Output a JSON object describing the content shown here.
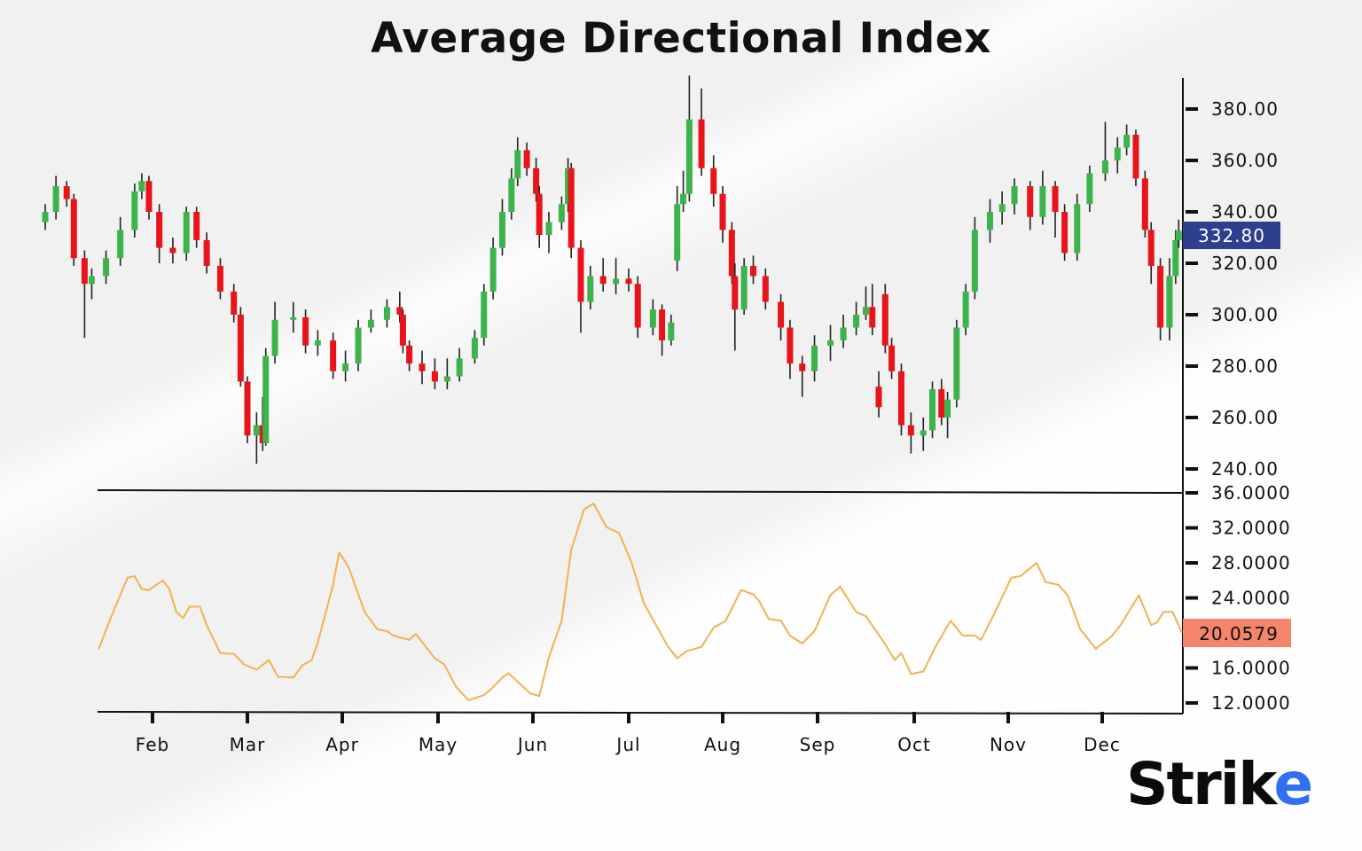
{
  "chart_data": [
    {
      "type": "candlestick",
      "title": "Average Directional Index",
      "price_axis": {
        "ticks": [
          "380.00",
          "360.00",
          "340.00",
          "320.00",
          "300.00",
          "280.00",
          "260.00",
          "240.00"
        ],
        "range": [
          240,
          380
        ],
        "position": "right"
      },
      "last_price_label": "332.80",
      "x_axis": {
        "tick_labels": [
          "Feb",
          "Mar",
          "Apr",
          "May",
          "Jun",
          "Jul",
          "Aug",
          "Sep",
          "Oct",
          "Nov",
          "Dec"
        ]
      },
      "colors": {
        "up": "#3cb44b",
        "down": "#e8141b",
        "wick": "#222222",
        "last_price_badge": "#2e3f8f"
      },
      "candles_columns": [
        "date",
        "open",
        "high",
        "low",
        "close"
      ],
      "candles": [
        [
          "01-02",
          336,
          343,
          333,
          340
        ],
        [
          "01-05",
          340,
          354,
          337,
          350
        ],
        [
          "01-08",
          350,
          352,
          342,
          345
        ],
        [
          "01-10",
          345,
          347,
          319,
          322
        ],
        [
          "01-13",
          322,
          325,
          291,
          312
        ],
        [
          "01-15",
          312,
          318,
          306,
          315
        ],
        [
          "01-19",
          315,
          325,
          312,
          322
        ],
        [
          "01-23",
          322,
          338,
          319,
          333
        ],
        [
          "01-27",
          333,
          351,
          330,
          348
        ],
        [
          "01-29",
          348,
          355,
          345,
          352
        ],
        [
          "01-31",
          352,
          354,
          337,
          340
        ],
        [
          "02-03",
          340,
          343,
          320,
          326
        ],
        [
          "02-07",
          326,
          330,
          320,
          324
        ],
        [
          "02-11",
          324,
          342,
          321,
          340
        ],
        [
          "02-14",
          340,
          342,
          326,
          329
        ],
        [
          "02-17",
          329,
          332,
          316,
          319
        ],
        [
          "02-21",
          319,
          322,
          306,
          309
        ],
        [
          "02-25",
          309,
          312,
          297,
          300
        ],
        [
          "02-27",
          300,
          303,
          272,
          274
        ],
        [
          "03-01",
          274,
          276,
          250,
          253
        ],
        [
          "03-04",
          253,
          262,
          242,
          257
        ],
        [
          "03-06",
          257,
          268,
          247,
          250
        ],
        [
          "03-07",
          250,
          287,
          249,
          284
        ],
        [
          "03-10",
          284,
          305,
          281,
          298
        ],
        [
          "03-16",
          298,
          305,
          293,
          299
        ],
        [
          "03-20",
          299,
          302,
          285,
          288
        ],
        [
          "03-24",
          288,
          294,
          284,
          290
        ],
        [
          "03-29",
          290,
          293,
          275,
          278
        ],
        [
          "04-02",
          278,
          286,
          274,
          281
        ],
        [
          "04-06",
          281,
          298,
          278,
          295
        ],
        [
          "04-10",
          295,
          302,
          293,
          298
        ],
        [
          "04-15",
          298,
          306,
          295,
          303
        ],
        [
          "04-19",
          303,
          309,
          297,
          300
        ],
        [
          "04-20",
          300,
          302,
          285,
          288
        ],
        [
          "04-22",
          288,
          290,
          278,
          281
        ],
        [
          "04-26",
          281,
          286,
          273,
          278
        ],
        [
          "04-30",
          278,
          283,
          271,
          274
        ],
        [
          "05-04",
          274,
          283,
          271,
          276
        ],
        [
          "05-08",
          276,
          287,
          274,
          283
        ],
        [
          "05-13",
          283,
          294,
          281,
          291
        ],
        [
          "05-16",
          291,
          312,
          288,
          309
        ],
        [
          "05-19",
          309,
          330,
          306,
          326
        ],
        [
          "05-22",
          326,
          345,
          323,
          340
        ],
        [
          "05-25",
          340,
          357,
          337,
          353
        ],
        [
          "05-27",
          353,
          369,
          350,
          364
        ],
        [
          "05-30",
          364,
          367,
          354,
          357
        ],
        [
          "06-02",
          357,
          361,
          344,
          347
        ],
        [
          "06-03",
          347,
          350,
          326,
          331
        ],
        [
          "06-06",
          331,
          340,
          324,
          336
        ],
        [
          "06-10",
          336,
          346,
          333,
          343
        ],
        [
          "06-12",
          343,
          361,
          340,
          357
        ],
        [
          "06-13",
          357,
          359,
          322,
          326
        ],
        [
          "06-16",
          326,
          329,
          293,
          305
        ],
        [
          "06-19",
          305,
          319,
          302,
          315
        ],
        [
          "06-23",
          315,
          322,
          309,
          312
        ],
        [
          "06-27",
          312,
          322,
          308,
          314
        ],
        [
          "07-01",
          314,
          318,
          309,
          312
        ],
        [
          "07-04",
          312,
          315,
          291,
          295
        ],
        [
          "07-09",
          295,
          306,
          292,
          302
        ],
        [
          "07-12",
          302,
          304,
          284,
          290
        ],
        [
          "07-15",
          290,
          300,
          288,
          297
        ],
        [
          "07-17",
          321,
          350,
          317,
          343
        ],
        [
          "07-19",
          343,
          356,
          340,
          347
        ],
        [
          "07-21",
          347,
          393,
          344,
          376
        ],
        [
          "07-25",
          376,
          388,
          354,
          357
        ],
        [
          "07-29",
          357,
          362,
          342,
          347
        ],
        [
          "08-01",
          347,
          350,
          328,
          333
        ],
        [
          "08-04",
          333,
          336,
          312,
          315
        ],
        [
          "08-05",
          315,
          320,
          286,
          302
        ],
        [
          "08-08",
          302,
          322,
          300,
          319
        ],
        [
          "08-11",
          319,
          323,
          312,
          315
        ],
        [
          "08-15",
          315,
          318,
          302,
          305
        ],
        [
          "08-20",
          305,
          308,
          290,
          295
        ],
        [
          "08-23",
          295,
          298,
          275,
          281
        ],
        [
          "08-27",
          281,
          284,
          268,
          278
        ],
        [
          "08-31",
          278,
          292,
          274,
          288
        ],
        [
          "09-05",
          288,
          296,
          282,
          290
        ],
        [
          "09-09",
          290,
          300,
          287,
          295
        ],
        [
          "09-13",
          295,
          305,
          292,
          300
        ],
        [
          "09-16",
          300,
          311,
          298,
          303
        ],
        [
          "09-18",
          303,
          312,
          292,
          295
        ],
        [
          "09-20",
          272,
          278,
          260,
          264
        ],
        [
          "09-22",
          308,
          312,
          285,
          288
        ],
        [
          "09-24",
          288,
          291,
          275,
          278
        ],
        [
          "09-27",
          278,
          281,
          253,
          257
        ],
        [
          "09-30",
          257,
          262,
          246,
          253
        ],
        [
          "10-04",
          253,
          260,
          247,
          255
        ],
        [
          "10-07",
          255,
          274,
          252,
          271
        ],
        [
          "10-10",
          271,
          275,
          257,
          260
        ],
        [
          "10-12",
          260,
          270,
          252,
          267
        ],
        [
          "10-15",
          267,
          298,
          264,
          295
        ],
        [
          "10-18",
          295,
          312,
          292,
          309
        ],
        [
          "10-21",
          309,
          338,
          306,
          333
        ],
        [
          "10-26",
          333,
          345,
          328,
          340
        ],
        [
          "10-30",
          340,
          348,
          335,
          343
        ],
        [
          "11-03",
          343,
          353,
          339,
          350
        ],
        [
          "11-08",
          350,
          352,
          333,
          338
        ],
        [
          "11-12",
          338,
          356,
          335,
          350
        ],
        [
          "11-16",
          350,
          352,
          330,
          340
        ],
        [
          "11-19",
          340,
          343,
          321,
          324
        ],
        [
          "11-23",
          324,
          347,
          321,
          343
        ],
        [
          "11-27",
          343,
          358,
          340,
          355
        ],
        [
          "12-02",
          355,
          375,
          352,
          360
        ],
        [
          "12-06",
          360,
          369,
          355,
          365
        ],
        [
          "12-09",
          365,
          374,
          362,
          370
        ],
        [
          "12-12",
          370,
          372,
          350,
          353
        ],
        [
          "12-15",
          353,
          356,
          330,
          333
        ],
        [
          "12-17",
          333,
          336,
          312,
          319
        ],
        [
          "12-20",
          319,
          322,
          290,
          295
        ],
        [
          "12-23",
          295,
          322,
          290,
          315
        ],
        [
          "12-25",
          315,
          333,
          312,
          329
        ],
        [
          "12-26",
          329,
          337,
          326,
          332.8
        ]
      ]
    },
    {
      "type": "line",
      "adx_axis": {
        "ticks": [
          "36.0000",
          "32.0000",
          "28.0000",
          "24.0000",
          "16.0000",
          "12.0000"
        ],
        "range": [
          12,
          36
        ],
        "position": "right"
      },
      "last_value_label": "20.0579",
      "colors": {
        "line": "#f2b24f",
        "last_value_badge": "#f4846a"
      },
      "points_columns": [
        "date",
        "value"
      ],
      "points": [
        [
          "01-17",
          18.2
        ],
        [
          "01-20",
          21.4
        ],
        [
          "01-25",
          26.3
        ],
        [
          "01-27",
          26.5
        ],
        [
          "01-29",
          25.0
        ],
        [
          "01-31",
          24.9
        ],
        [
          "02-04",
          26.0
        ],
        [
          "02-06",
          25.0
        ],
        [
          "02-08",
          22.4
        ],
        [
          "02-10",
          21.7
        ],
        [
          "02-12",
          23.0
        ],
        [
          "02-15",
          23.0
        ],
        [
          "02-17",
          20.9
        ],
        [
          "02-21",
          17.7
        ],
        [
          "02-25",
          17.6
        ],
        [
          "02-28",
          16.4
        ],
        [
          "03-04",
          15.8
        ],
        [
          "03-08",
          16.9
        ],
        [
          "03-11",
          15.0
        ],
        [
          "03-16",
          14.9
        ],
        [
          "03-19",
          16.3
        ],
        [
          "03-22",
          16.9
        ],
        [
          "03-24",
          18.9
        ],
        [
          "03-29",
          25.5
        ],
        [
          "03-31",
          29.2
        ],
        [
          "04-03",
          27.5
        ],
        [
          "04-08",
          22.4
        ],
        [
          "04-12",
          20.4
        ],
        [
          "04-15",
          20.2
        ],
        [
          "04-17",
          19.7
        ],
        [
          "04-22",
          19.2
        ],
        [
          "04-24",
          19.9
        ],
        [
          "04-30",
          17.1
        ],
        [
          "05-03",
          16.4
        ],
        [
          "05-07",
          13.8
        ],
        [
          "05-11",
          12.3
        ],
        [
          "05-16",
          12.9
        ],
        [
          "05-19",
          13.8
        ],
        [
          "05-22",
          14.9
        ],
        [
          "05-24",
          15.4
        ],
        [
          "05-29",
          13.8
        ],
        [
          "05-31",
          13.1
        ],
        [
          "06-03",
          12.8
        ],
        [
          "06-06",
          17.2
        ],
        [
          "06-10",
          21.4
        ],
        [
          "06-13",
          29.5
        ],
        [
          "06-17",
          34.1
        ],
        [
          "06-20",
          34.8
        ],
        [
          "06-24",
          32.1
        ],
        [
          "06-28",
          31.4
        ],
        [
          "07-02",
          28.0
        ],
        [
          "07-06",
          23.4
        ],
        [
          "07-10",
          20.9
        ],
        [
          "07-14",
          18.4
        ],
        [
          "07-17",
          17.1
        ],
        [
          "07-20",
          17.9
        ],
        [
          "07-25",
          18.4
        ],
        [
          "07-29",
          20.6
        ],
        [
          "08-02",
          21.4
        ],
        [
          "08-07",
          24.9
        ],
        [
          "08-11",
          24.4
        ],
        [
          "08-13",
          23.6
        ],
        [
          "08-16",
          21.6
        ],
        [
          "08-20",
          21.4
        ],
        [
          "08-23",
          19.7
        ],
        [
          "08-27",
          18.8
        ],
        [
          "08-31",
          20.2
        ],
        [
          "09-05",
          24.3
        ],
        [
          "09-08",
          25.3
        ],
        [
          "09-13",
          22.4
        ],
        [
          "09-16",
          21.9
        ],
        [
          "09-22",
          18.7
        ],
        [
          "09-25",
          16.9
        ],
        [
          "09-27",
          17.7
        ],
        [
          "09-30",
          15.3
        ],
        [
          "10-04",
          15.6
        ],
        [
          "10-08",
          18.4
        ],
        [
          "10-13",
          21.4
        ],
        [
          "10-17",
          19.7
        ],
        [
          "10-21",
          19.7
        ],
        [
          "10-23",
          19.2
        ],
        [
          "10-27",
          21.9
        ],
        [
          "11-02",
          26.3
        ],
        [
          "11-05",
          26.5
        ],
        [
          "11-10",
          28.0
        ],
        [
          "11-13",
          25.8
        ],
        [
          "11-17",
          25.5
        ],
        [
          "11-20",
          24.3
        ],
        [
          "11-24",
          20.4
        ],
        [
          "11-29",
          18.2
        ],
        [
          "12-04",
          19.6
        ],
        [
          "12-07",
          20.9
        ],
        [
          "12-13",
          24.3
        ],
        [
          "12-17",
          20.9
        ],
        [
          "12-19",
          21.2
        ],
        [
          "12-21",
          22.4
        ],
        [
          "12-24",
          22.4
        ],
        [
          "12-27",
          20.0579
        ]
      ]
    }
  ],
  "logo": {
    "text_main": "Stri",
    "text_k": "k",
    "text_e": "e"
  }
}
